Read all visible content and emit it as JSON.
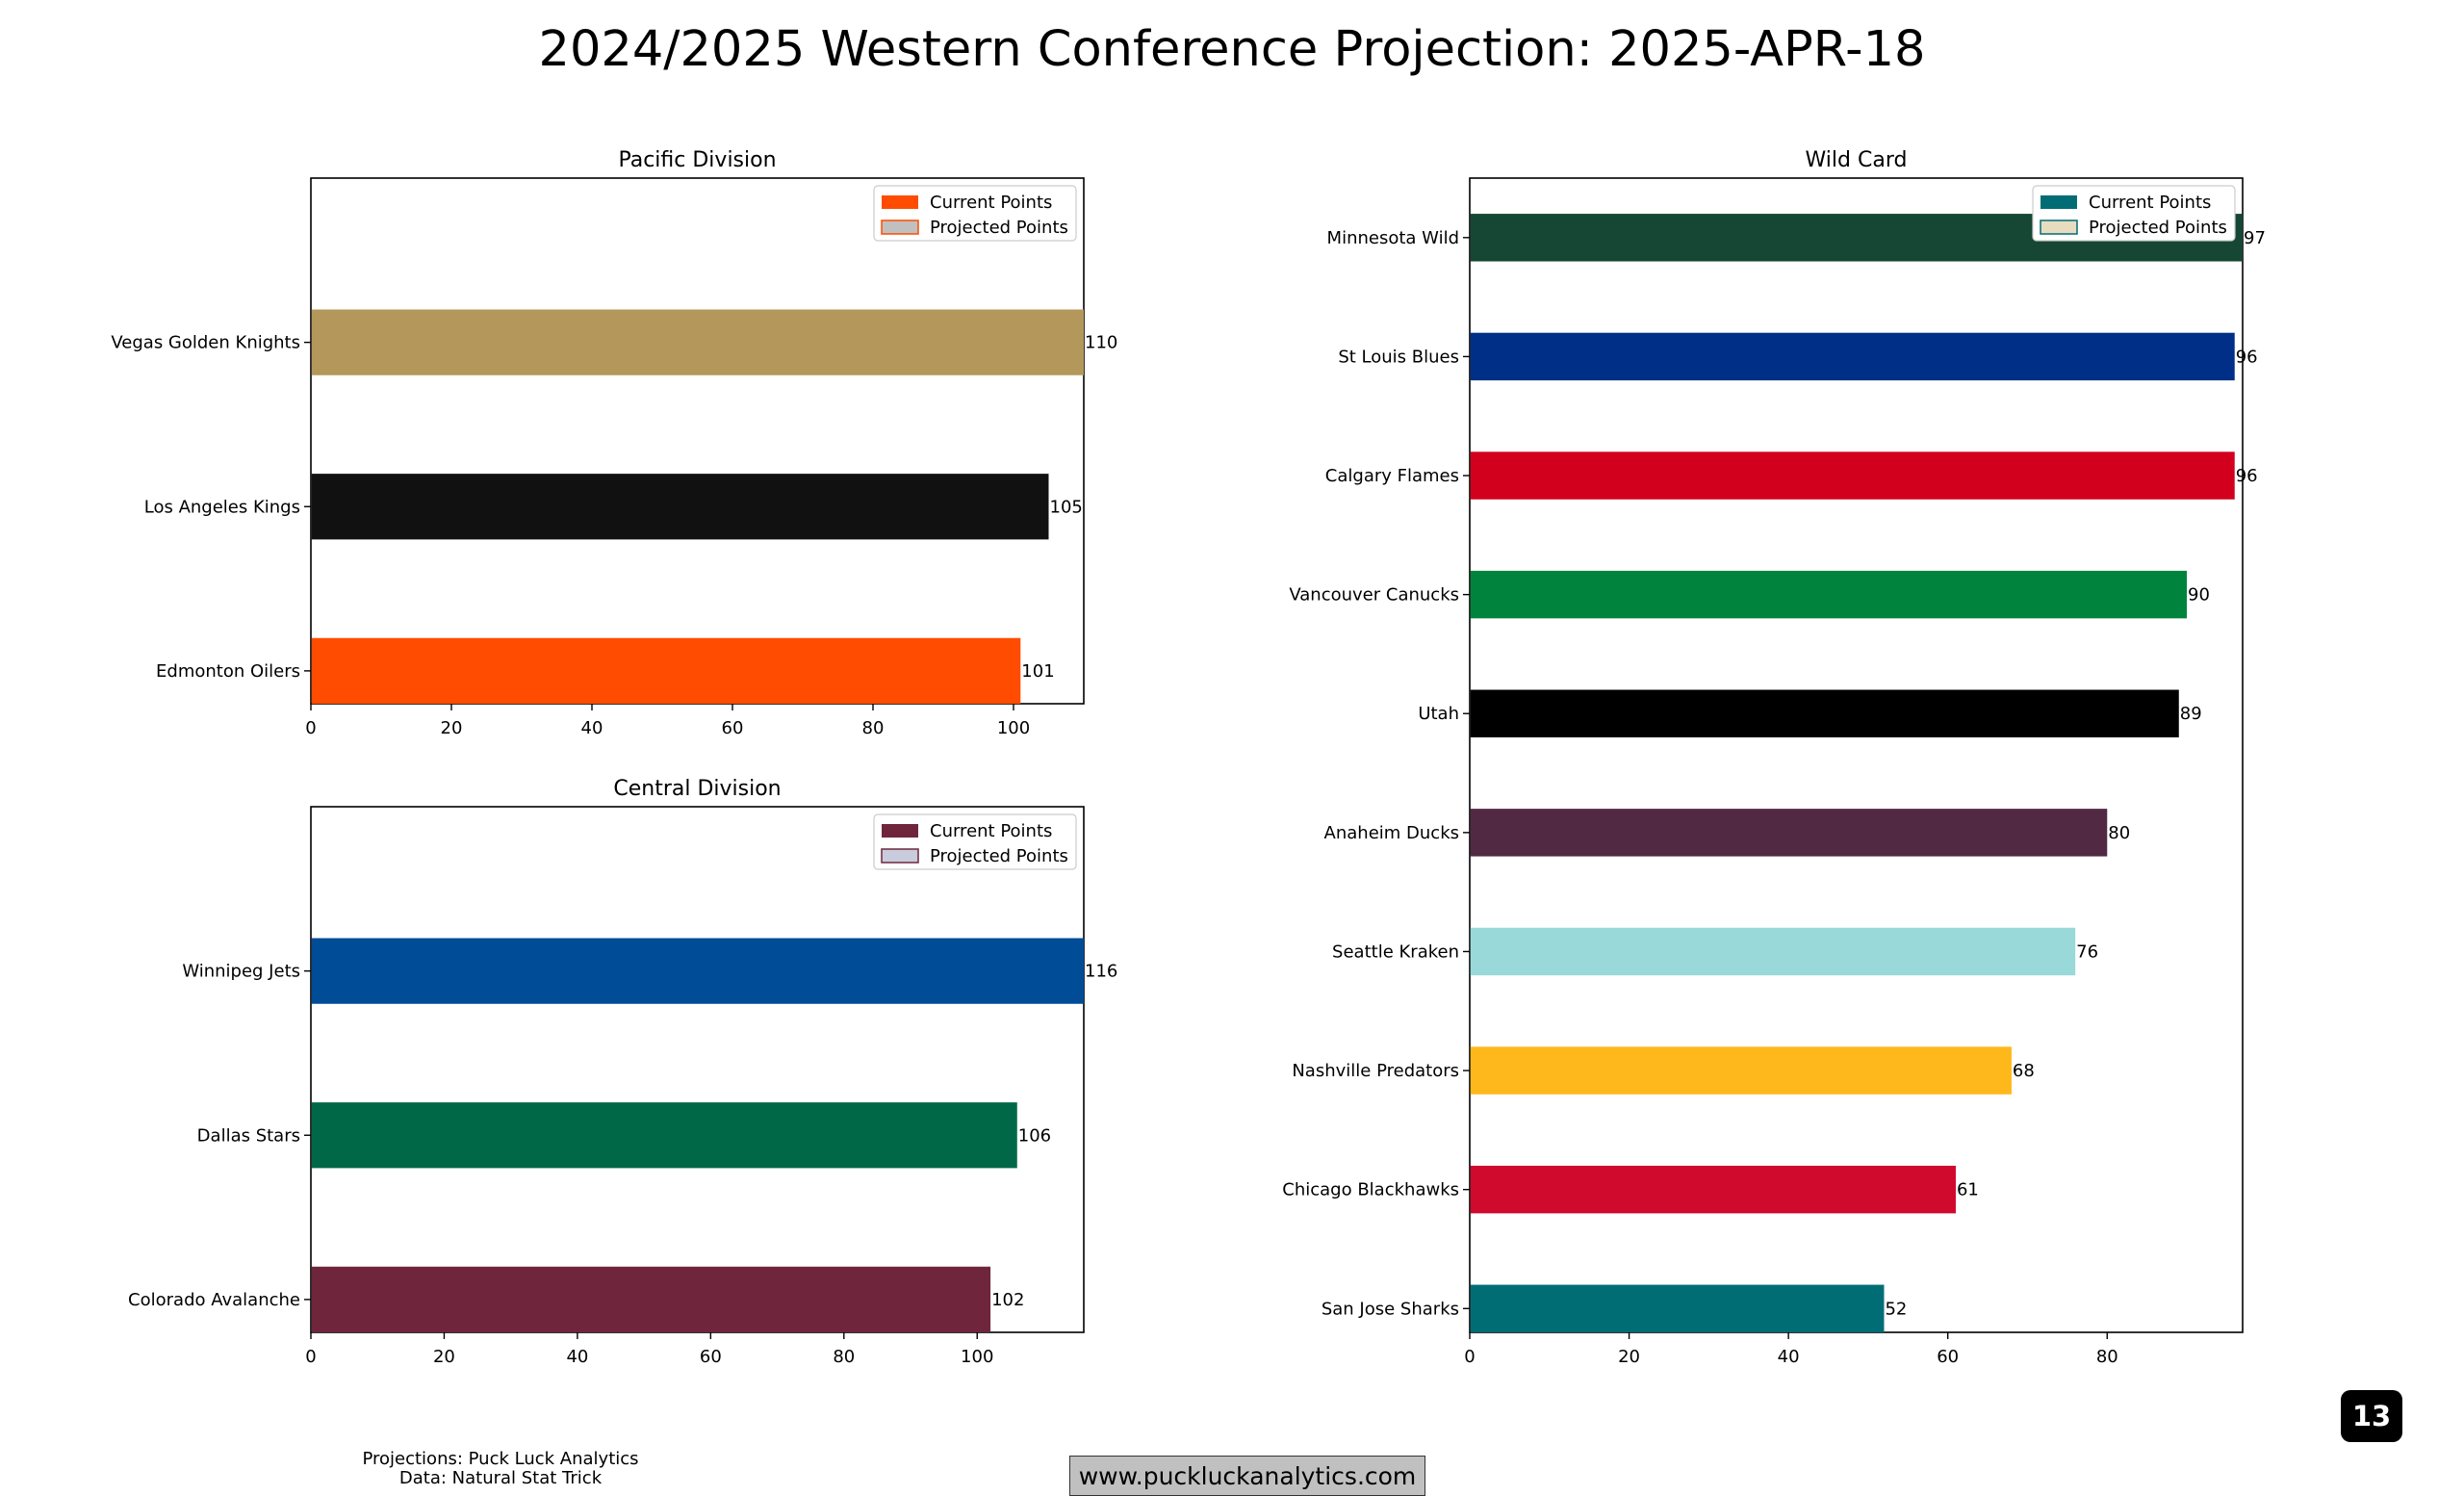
{
  "figure_title": "2024/2025 Western Conference Projection: 2025-APR-18",
  "footer": {
    "source_projections": "Projections: Puck Luck Analytics",
    "source_data": "Data: Natural Stat Trick",
    "website": "www.puckluckanalytics.com"
  },
  "page_number": "13",
  "chart_data": [
    {
      "type": "bar",
      "orientation": "horizontal",
      "title": "Pacific Division",
      "categories": [
        "Vegas Golden Knights",
        "Los Angeles Kings",
        "Edmonton Oilers"
      ],
      "series": [
        {
          "name": "Current Points",
          "values": [
            110,
            105,
            101
          ]
        },
        {
          "name": "Projected Points",
          "values": [
            110,
            105,
            101
          ]
        }
      ],
      "bar_colors": [
        "#B4975A",
        "#111111",
        "#FF4C00"
      ],
      "data_labels": [
        "110",
        "105",
        "101"
      ],
      "xlim": [
        0,
        110
      ],
      "xticks": [
        0,
        20,
        40,
        60,
        80,
        100
      ],
      "legend": "top-right",
      "legend_colors": {
        "current": "#FF4C00",
        "projected_fill": "#C0C0C0",
        "projected_edge": "#FF4C00"
      }
    },
    {
      "type": "bar",
      "orientation": "horizontal",
      "title": "Central Division",
      "categories": [
        "Winnipeg Jets",
        "Dallas Stars",
        "Colorado Avalanche"
      ],
      "series": [
        {
          "name": "Current Points",
          "values": [
            116,
            106,
            102
          ]
        },
        {
          "name": "Projected Points",
          "values": [
            116,
            106,
            102
          ]
        }
      ],
      "bar_colors": [
        "#004C97",
        "#006847",
        "#6F263D"
      ],
      "data_labels": [
        "116",
        "106",
        "102"
      ],
      "xlim": [
        0,
        116
      ],
      "xticks": [
        0,
        20,
        40,
        60,
        80,
        100
      ],
      "legend": "top-right",
      "legend_colors": {
        "current": "#6F263D",
        "projected_fill": "#C8CCDC",
        "projected_edge": "#6F263D"
      }
    },
    {
      "type": "bar",
      "orientation": "horizontal",
      "title": "Wild Card",
      "categories": [
        "Minnesota Wild",
        "St Louis Blues",
        "Calgary Flames",
        "Vancouver Canucks",
        "Utah",
        "Anaheim Ducks",
        "Seattle Kraken",
        "Nashville Predators",
        "Chicago Blackhawks",
        "San Jose Sharks"
      ],
      "series": [
        {
          "name": "Current Points",
          "values": [
            97,
            96,
            96,
            90,
            89,
            80,
            76,
            68,
            61,
            52
          ]
        },
        {
          "name": "Projected Points",
          "values": [
            97,
            96,
            96,
            90,
            89,
            80,
            76,
            68,
            61,
            52
          ]
        }
      ],
      "bar_colors": [
        "#154734",
        "#002F87",
        "#D2001C",
        "#00843D",
        "#000000",
        "#522943",
        "#99D9D9",
        "#FFB81C",
        "#CF0A2C",
        "#006D75"
      ],
      "data_labels": [
        "97",
        "96",
        "96",
        "90",
        "89",
        "80",
        "76",
        "68",
        "61",
        "52"
      ],
      "xlim": [
        0,
        97
      ],
      "xticks": [
        0,
        20,
        40,
        60,
        80
      ],
      "legend": "top-right",
      "legend_colors": {
        "current": "#006D75",
        "projected_fill": "#E8DCC0",
        "projected_edge": "#006D75"
      }
    }
  ]
}
